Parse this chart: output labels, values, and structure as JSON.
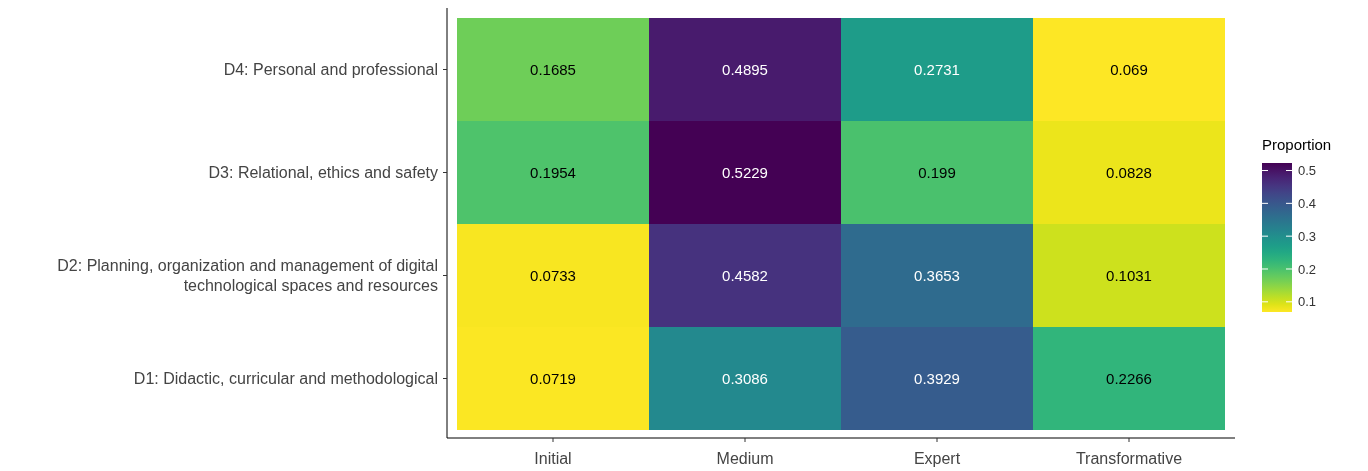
{
  "chart_data": {
    "type": "heatmap",
    "categories": [
      "Initial",
      "Medium",
      "Expert",
      "Transformative"
    ],
    "y_categories": [
      "D4: Personal and professional",
      "D3: Relational, ethics and safety",
      "D2: Planning, organization and management of digital technological spaces and resources",
      "D1: Didactic, curricular and methodological"
    ],
    "cells": [
      [
        0.1685,
        0.4895,
        0.2731,
        0.069
      ],
      [
        0.1954,
        0.5229,
        0.199,
        0.0828
      ],
      [
        0.0733,
        0.4582,
        0.3653,
        0.1031
      ],
      [
        0.0719,
        0.3086,
        0.3929,
        0.2266
      ]
    ],
    "data_labels": true,
    "clabel": "Proportion",
    "clim": [
      0.069,
      0.5229
    ],
    "cticks": [
      0.1,
      0.2,
      0.3,
      0.4,
      0.5
    ]
  }
}
